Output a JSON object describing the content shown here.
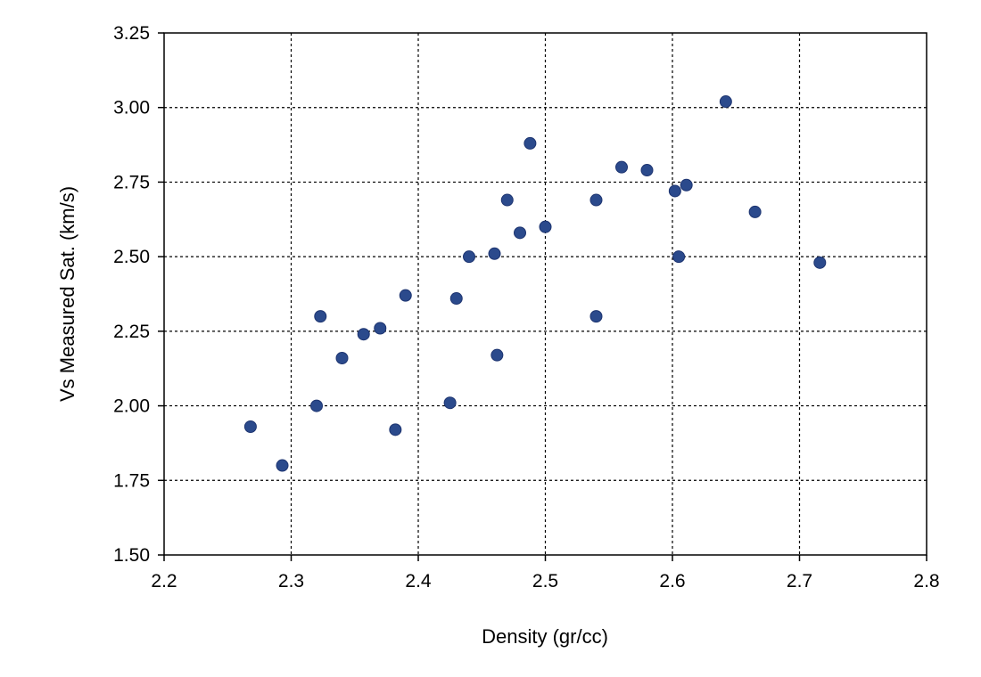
{
  "chart_data": {
    "type": "scatter",
    "title": "",
    "xlabel": "Density (gr/cc)",
    "ylabel": "Vs Measured Sat. (km/s)",
    "xlim": [
      2.2,
      2.8
    ],
    "ylim": [
      1.5,
      3.25
    ],
    "x_ticks": [
      "2.2",
      "2.3",
      "2.4",
      "2.5",
      "2.6",
      "2.7",
      "2.8"
    ],
    "y_ticks": [
      "1.50",
      "1.75",
      "2.00",
      "2.25",
      "2.50",
      "2.75",
      "3.00",
      "3.25"
    ],
    "grid": true,
    "legend": "none",
    "marker_color": "#2b4a8c",
    "points": [
      {
        "x": 2.268,
        "y": 1.93
      },
      {
        "x": 2.293,
        "y": 1.8
      },
      {
        "x": 2.32,
        "y": 2.0
      },
      {
        "x": 2.323,
        "y": 2.3
      },
      {
        "x": 2.34,
        "y": 2.16
      },
      {
        "x": 2.357,
        "y": 2.24
      },
      {
        "x": 2.37,
        "y": 2.26
      },
      {
        "x": 2.382,
        "y": 1.92
      },
      {
        "x": 2.39,
        "y": 2.37
      },
      {
        "x": 2.425,
        "y": 2.01
      },
      {
        "x": 2.43,
        "y": 2.36
      },
      {
        "x": 2.44,
        "y": 2.5
      },
      {
        "x": 2.46,
        "y": 2.51
      },
      {
        "x": 2.462,
        "y": 2.17
      },
      {
        "x": 2.47,
        "y": 2.69
      },
      {
        "x": 2.48,
        "y": 2.58
      },
      {
        "x": 2.488,
        "y": 2.88
      },
      {
        "x": 2.5,
        "y": 2.6
      },
      {
        "x": 2.54,
        "y": 2.69
      },
      {
        "x": 2.54,
        "y": 2.3
      },
      {
        "x": 2.56,
        "y": 2.8
      },
      {
        "x": 2.58,
        "y": 2.79
      },
      {
        "x": 2.602,
        "y": 2.72
      },
      {
        "x": 2.605,
        "y": 2.5
      },
      {
        "x": 2.611,
        "y": 2.74
      },
      {
        "x": 2.642,
        "y": 3.02
      },
      {
        "x": 2.665,
        "y": 2.65
      },
      {
        "x": 2.716,
        "y": 2.48
      }
    ]
  }
}
